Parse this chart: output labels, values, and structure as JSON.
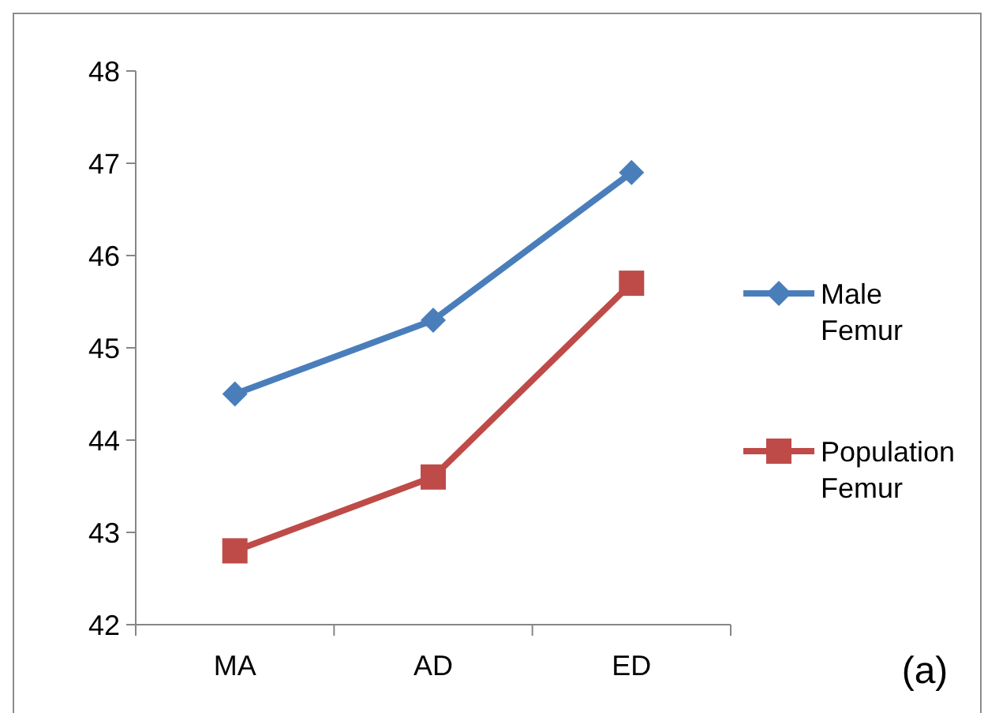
{
  "chart_data": {
    "type": "line",
    "categories": [
      "MA",
      "AD",
      "ED"
    ],
    "series": [
      {
        "name": "Male Femur",
        "color": "#4a7ebb",
        "marker": "diamond",
        "values": [
          44.5,
          45.3,
          46.9
        ]
      },
      {
        "name": "Population Femur",
        "color": "#be4b48",
        "marker": "square",
        "values": [
          42.8,
          43.6,
          45.7
        ]
      }
    ],
    "ylim": [
      42,
      48
    ],
    "yticks": [
      42,
      43,
      44,
      45,
      46,
      47,
      48
    ],
    "grid": false,
    "legend": "right",
    "line_style": "solid",
    "annotations": [
      "(a)"
    ]
  }
}
